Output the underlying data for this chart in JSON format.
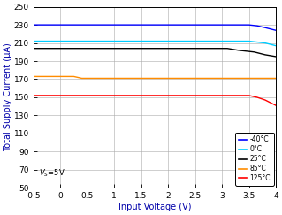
{
  "title": "",
  "xlabel": "Input Voltage (V)",
  "ylabel": "Total Supply Current (μA)",
  "vss_label": "V$_S$=5V",
  "xlim": [
    -0.5,
    4.0
  ],
  "ylim": [
    50,
    250
  ],
  "xticks": [
    -0.5,
    0,
    0.5,
    1.0,
    1.5,
    2.0,
    2.5,
    3.0,
    3.5,
    4.0
  ],
  "yticks": [
    50,
    70,
    90,
    110,
    130,
    150,
    170,
    190,
    210,
    230,
    250
  ],
  "xtick_labels": [
    "-0.5",
    "0",
    "0.5",
    "1",
    "1.5",
    "2",
    "2.5",
    "3",
    "3.5",
    "4"
  ],
  "legend_labels": [
    "-40°C",
    "0°C",
    "25°C",
    "85°C",
    "125°C"
  ],
  "legend_colors": [
    "#0000FF",
    "#00CCFF",
    "#000000",
    "#FF8C00",
    "#FF0000"
  ],
  "curves": {
    "neg40C": {
      "color": "#0000FF",
      "x": [
        -0.5,
        3.5,
        3.65,
        3.8,
        4.0
      ],
      "y": [
        230,
        230,
        229,
        227,
        224
      ]
    },
    "0C": {
      "color": "#00CCFF",
      "x": [
        -0.5,
        3.5,
        3.65,
        3.8,
        4.0
      ],
      "y": [
        212,
        212,
        211,
        210,
        207
      ]
    },
    "25C": {
      "color": "#000000",
      "x": [
        -0.5,
        3.1,
        3.3,
        3.6,
        3.8,
        4.0
      ],
      "y": [
        204,
        204,
        202,
        200,
        197,
        195
      ]
    },
    "85C": {
      "color": "#FF8C00",
      "x": [
        -0.5,
        0.25,
        0.4,
        3.7,
        4.0
      ],
      "y": [
        173,
        173,
        171,
        171,
        171
      ]
    },
    "125C": {
      "color": "#FF0000",
      "x": [
        -0.5,
        3.5,
        3.65,
        3.8,
        4.0
      ],
      "y": [
        152,
        152,
        150,
        147,
        141
      ]
    }
  },
  "background_color": "#FFFFFF",
  "label_color": "#0000AA",
  "tick_color": "#000000",
  "grid_color": "#AAAAAA",
  "fig_width": 3.19,
  "fig_height": 2.43,
  "dpi": 100
}
